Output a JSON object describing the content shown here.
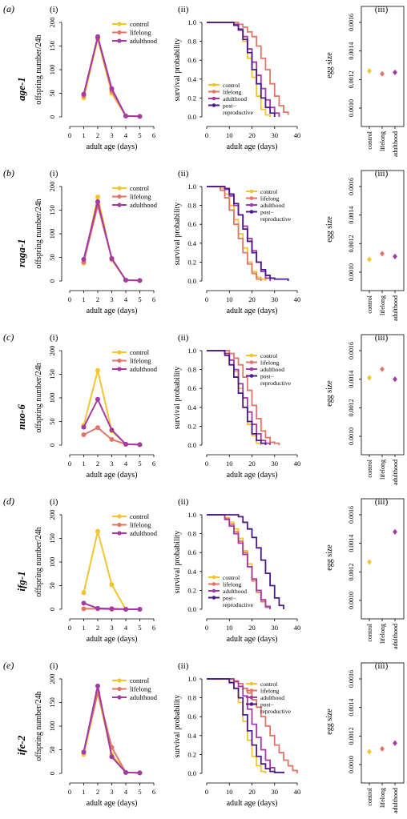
{
  "colors": {
    "control": "#F2C530",
    "lifelong": "#E27567",
    "adulthood": "#A43BA4",
    "post": "#4A1A8C"
  },
  "common": {
    "offspring_xlabel": "adult age (days)",
    "offspring_ylabel": "offspring number/24h",
    "survival_xlabel": "adult age (days)",
    "survival_ylabel": "survival probability",
    "egg_ylabel": "egg size",
    "offspring_xticks": [
      "0",
      "1",
      "2",
      "3",
      "4",
      "5",
      "6"
    ],
    "offspring_yticks": [
      "0",
      "50",
      "100",
      "150",
      "200"
    ],
    "survival_xticks": [
      "0",
      "10",
      "20",
      "30",
      "40"
    ],
    "survival_yticks": [
      "0.0",
      "0.2",
      "0.4",
      "0.6",
      "0.8",
      "1.0"
    ],
    "egg_yticks": [
      "0.0010",
      "0.0012",
      "0.0014",
      "0.0016"
    ],
    "legend_control": "control",
    "legend_lifelong": "lifelong",
    "legend_adulthood": "adulthood",
    "legend_post_1": "post−",
    "legend_post_2": "reproductive",
    "egg_cat_control": "control",
    "egg_cat_lifelong": "lifelong",
    "egg_cat_adulthood": "adulthood"
  },
  "rows": [
    {
      "letter": "(a)",
      "gene": "age-1",
      "sub1": "(i)",
      "sub2": "(ii)",
      "sub3": "(iii)"
    },
    {
      "letter": "(b)",
      "gene": "raga-1",
      "sub1": "(i)",
      "sub2": "(ii)",
      "sub3": "(iii)"
    },
    {
      "letter": "(c)",
      "gene": "nuo-6",
      "sub1": "(i)",
      "sub2": "(ii)",
      "sub3": "(iii)"
    },
    {
      "letter": "(d)",
      "gene": "ifg-1",
      "sub1": "(i)",
      "sub2": "(ii)",
      "sub3": "(iii)"
    },
    {
      "letter": "(e)",
      "gene": "ife-2",
      "sub1": "(i)",
      "sub2": "(ii)",
      "sub3": "(iii)"
    }
  ],
  "chart_data": [
    {
      "panel": "a-i",
      "type": "line",
      "xlabel": "adult age (days)",
      "ylabel": "offspring number/24h",
      "xlim": [
        0,
        6
      ],
      "ylim": [
        0,
        200
      ],
      "x": [
        1,
        2,
        3,
        4,
        5
      ],
      "series": [
        {
          "name": "control",
          "values": [
            40,
            165,
            50,
            2,
            1
          ]
        },
        {
          "name": "lifelong",
          "values": [
            45,
            168,
            55,
            2,
            1
          ]
        },
        {
          "name": "adulthood",
          "values": [
            48,
            170,
            60,
            2,
            1
          ]
        }
      ],
      "legend": "top-right"
    },
    {
      "panel": "a-ii",
      "type": "line",
      "xlabel": "adult age (days)",
      "ylabel": "survival probability",
      "xlim": [
        0,
        40
      ],
      "ylim": [
        0,
        1
      ],
      "series": [
        {
          "name": "control",
          "x": [
            0,
            12,
            14,
            16,
            18,
            20,
            22,
            24,
            26,
            28
          ],
          "values": [
            1,
            0.98,
            0.92,
            0.8,
            0.62,
            0.42,
            0.22,
            0.08,
            0.02,
            0
          ]
        },
        {
          "name": "lifelong",
          "x": [
            0,
            14,
            16,
            18,
            20,
            22,
            24,
            26,
            28,
            30,
            32,
            34,
            36
          ],
          "values": [
            1,
            0.98,
            0.95,
            0.9,
            0.85,
            0.75,
            0.62,
            0.5,
            0.35,
            0.22,
            0.12,
            0.05,
            0.02
          ]
        },
        {
          "name": "adulthood",
          "x": [
            0,
            12,
            14,
            16,
            18,
            20,
            22,
            24,
            26,
            28,
            30,
            32
          ],
          "values": [
            1,
            0.98,
            0.93,
            0.85,
            0.72,
            0.58,
            0.44,
            0.3,
            0.18,
            0.1,
            0.04,
            0
          ]
        },
        {
          "name": "post−reproductive",
          "x": [
            0,
            12,
            14,
            16,
            18,
            20,
            22,
            24,
            26,
            28,
            30
          ],
          "values": [
            1,
            0.97,
            0.92,
            0.82,
            0.68,
            0.5,
            0.35,
            0.2,
            0.1,
            0.04,
            0
          ]
        }
      ],
      "legend": "bottom-left"
    },
    {
      "panel": "a-iii",
      "type": "scatter",
      "ylabel": "egg size",
      "categories": [
        "control",
        "lifelong",
        "adulthood"
      ],
      "values": [
        0.00126,
        0.00124,
        0.00125
      ],
      "ylim": [
        0.001,
        0.0016
      ]
    },
    {
      "panel": "b-i",
      "type": "line",
      "xlabel": "adult age (days)",
      "ylabel": "offspring number/24h",
      "xlim": [
        0,
        6
      ],
      "ylim": [
        0,
        200
      ],
      "x": [
        1,
        2,
        3,
        4,
        5
      ],
      "series": [
        {
          "name": "control",
          "values": [
            38,
            178,
            45,
            2,
            1
          ]
        },
        {
          "name": "lifelong",
          "values": [
            40,
            160,
            48,
            2,
            1
          ]
        },
        {
          "name": "adulthood",
          "values": [
            46,
            168,
            47,
            2,
            1
          ]
        }
      ],
      "legend": "top-right"
    },
    {
      "panel": "b-ii",
      "type": "line",
      "xlabel": "adult age (days)",
      "ylabel": "survival probability",
      "xlim": [
        0,
        40
      ],
      "ylim": [
        0,
        1
      ],
      "series": [
        {
          "name": "control",
          "x": [
            0,
            6,
            8,
            10,
            12,
            14,
            16,
            18,
            20,
            22,
            24,
            26
          ],
          "values": [
            1,
            0.98,
            0.92,
            0.8,
            0.65,
            0.5,
            0.35,
            0.2,
            0.1,
            0.04,
            0.02,
            0
          ]
        },
        {
          "name": "lifelong",
          "x": [
            0,
            6,
            8,
            10,
            12,
            14,
            16,
            18,
            20,
            22,
            24
          ],
          "values": [
            1,
            0.96,
            0.88,
            0.75,
            0.6,
            0.45,
            0.3,
            0.18,
            0.08,
            0.02,
            0
          ]
        },
        {
          "name": "adulthood",
          "x": [
            0,
            8,
            10,
            12,
            14,
            16,
            18,
            20,
            22,
            24,
            26,
            28
          ],
          "values": [
            1,
            0.97,
            0.9,
            0.8,
            0.7,
            0.58,
            0.45,
            0.32,
            0.2,
            0.1,
            0.03,
            0
          ]
        },
        {
          "name": "post−reproductive",
          "x": [
            0,
            8,
            10,
            12,
            14,
            16,
            18,
            20,
            22,
            24,
            26,
            28,
            30,
            36
          ],
          "values": [
            1,
            0.98,
            0.92,
            0.82,
            0.7,
            0.55,
            0.42,
            0.3,
            0.2,
            0.12,
            0.06,
            0.03,
            0.02,
            0
          ]
        }
      ],
      "legend": "top-right"
    },
    {
      "panel": "b-iii",
      "type": "scatter",
      "ylabel": "egg size",
      "categories": [
        "control",
        "lifelong",
        "adulthood"
      ],
      "values": [
        0.00109,
        0.00113,
        0.00111
      ],
      "ylim": [
        0.001,
        0.0016
      ]
    },
    {
      "panel": "c-i",
      "type": "line",
      "xlabel": "adult age (days)",
      "ylabel": "offspring number/24h",
      "xlim": [
        0,
        6
      ],
      "ylim": [
        0,
        200
      ],
      "x": [
        1,
        2,
        3,
        4,
        5
      ],
      "series": [
        {
          "name": "control",
          "values": [
            42,
            158,
            30,
            2,
            1
          ]
        },
        {
          "name": "lifelong",
          "values": [
            22,
            37,
            12,
            2,
            1
          ]
        },
        {
          "name": "adulthood",
          "values": [
            38,
            97,
            32,
            2,
            1
          ]
        }
      ],
      "legend": "top-right"
    },
    {
      "panel": "c-ii",
      "type": "line",
      "xlabel": "adult age (days)",
      "ylabel": "survival probability",
      "xlim": [
        0,
        40
      ],
      "ylim": [
        0,
        1
      ],
      "series": [
        {
          "name": "control",
          "x": [
            0,
            8,
            10,
            12,
            14,
            16,
            18,
            20,
            22,
            24
          ],
          "values": [
            1,
            0.97,
            0.9,
            0.78,
            0.6,
            0.4,
            0.22,
            0.1,
            0.02,
            0
          ]
        },
        {
          "name": "lifelong",
          "x": [
            0,
            10,
            12,
            14,
            16,
            18,
            20,
            22,
            24,
            26,
            28,
            30,
            32
          ],
          "values": [
            1,
            0.97,
            0.92,
            0.85,
            0.72,
            0.58,
            0.42,
            0.28,
            0.15,
            0.08,
            0.03,
            0.02,
            0
          ]
        },
        {
          "name": "adulthood",
          "x": [
            0,
            8,
            10,
            12,
            14,
            16,
            18,
            20,
            22,
            24,
            26,
            28
          ],
          "values": [
            1,
            0.97,
            0.9,
            0.8,
            0.65,
            0.5,
            0.35,
            0.22,
            0.12,
            0.05,
            0.02,
            0
          ]
        },
        {
          "name": "post−reproductive",
          "x": [
            0,
            8,
            10,
            12,
            14,
            16,
            18,
            20,
            22,
            24,
            26
          ],
          "values": [
            1,
            0.95,
            0.85,
            0.72,
            0.55,
            0.4,
            0.25,
            0.12,
            0.05,
            0.02,
            0
          ]
        }
      ],
      "legend": "top-right"
    },
    {
      "panel": "c-iii",
      "type": "scatter",
      "ylabel": "egg size",
      "categories": [
        "control",
        "lifelong",
        "adulthood"
      ],
      "values": [
        0.00141,
        0.00147,
        0.0014
      ],
      "ylim": [
        0.001,
        0.0016
      ]
    },
    {
      "panel": "d-i",
      "type": "line",
      "xlabel": "adult age (days)",
      "ylabel": "offspring number/24h",
      "xlim": [
        0,
        6
      ],
      "ylim": [
        0,
        200
      ],
      "x": [
        1,
        2,
        3,
        4,
        5
      ],
      "series": [
        {
          "name": "control",
          "values": [
            35,
            165,
            52,
            0,
            null
          ]
        },
        {
          "name": "lifelong",
          "values": [
            1,
            1,
            0,
            0,
            0
          ]
        },
        {
          "name": "adulthood",
          "values": [
            13,
            2,
            1,
            0,
            0
          ]
        }
      ],
      "legend": "top-right"
    },
    {
      "panel": "d-ii",
      "type": "line",
      "xlabel": "adult age (days)",
      "ylabel": "survival probability",
      "xlim": [
        0,
        40
      ],
      "ylim": [
        0,
        1
      ],
      "series": [
        {
          "name": "control",
          "x": [
            0,
            8,
            10,
            12,
            14,
            16,
            18,
            20,
            22,
            24,
            26,
            28
          ],
          "values": [
            1,
            0.97,
            0.92,
            0.85,
            0.75,
            0.62,
            0.48,
            0.32,
            0.18,
            0.08,
            0.03,
            0
          ]
        },
        {
          "name": "lifelong",
          "x": [
            0,
            8,
            10,
            12,
            14,
            16,
            18,
            20,
            22,
            24,
            26,
            28
          ],
          "values": [
            1,
            0.96,
            0.9,
            0.82,
            0.72,
            0.6,
            0.45,
            0.3,
            0.18,
            0.08,
            0.02,
            0
          ]
        },
        {
          "name": "adulthood",
          "x": [
            0,
            8,
            10,
            12,
            14,
            16,
            18,
            20,
            22,
            24,
            26,
            28
          ],
          "values": [
            1,
            0.95,
            0.88,
            0.8,
            0.7,
            0.58,
            0.45,
            0.32,
            0.2,
            0.1,
            0.03,
            0
          ]
        },
        {
          "name": "post−reproductive",
          "x": [
            0,
            14,
            16,
            18,
            20,
            22,
            24,
            26,
            28,
            30,
            32,
            34
          ],
          "values": [
            1,
            0.98,
            0.92,
            0.85,
            0.76,
            0.65,
            0.52,
            0.38,
            0.25,
            0.12,
            0.04,
            0
          ]
        }
      ],
      "legend": "bottom-left"
    },
    {
      "panel": "d-iii",
      "type": "scatter",
      "ylabel": "egg size",
      "categories": [
        "control",
        "lifelong",
        "adulthood"
      ],
      "values": [
        0.00127,
        null,
        0.00148
      ],
      "ylim": [
        0.001,
        0.0016
      ]
    },
    {
      "panel": "e-i",
      "type": "line",
      "xlabel": "adult age (days)",
      "ylabel": "offspring number/24h",
      "xlim": [
        0,
        6
      ],
      "ylim": [
        0,
        200
      ],
      "x": [
        1,
        2,
        3,
        4,
        5
      ],
      "series": [
        {
          "name": "control",
          "values": [
            40,
            170,
            40,
            2,
            1
          ]
        },
        {
          "name": "lifelong",
          "values": [
            45,
            172,
            55,
            2,
            1
          ]
        },
        {
          "name": "adulthood",
          "values": [
            45,
            185,
            35,
            2,
            1
          ]
        }
      ],
      "legend": "top-right"
    },
    {
      "panel": "e-ii",
      "type": "line",
      "xlabel": "adult age (days)",
      "ylabel": "survival probability",
      "xlim": [
        0,
        40
      ],
      "ylim": [
        0,
        1
      ],
      "series": [
        {
          "name": "control",
          "x": [
            0,
            10,
            12,
            14,
            16,
            18,
            20,
            22,
            24,
            26
          ],
          "values": [
            1,
            0.97,
            0.9,
            0.75,
            0.55,
            0.35,
            0.18,
            0.08,
            0.02,
            0
          ]
        },
        {
          "name": "lifelong",
          "x": [
            0,
            12,
            14,
            16,
            18,
            20,
            22,
            24,
            26,
            28,
            30,
            32,
            34,
            36,
            38,
            40
          ],
          "values": [
            1,
            0.98,
            0.95,
            0.9,
            0.85,
            0.78,
            0.7,
            0.6,
            0.5,
            0.4,
            0.3,
            0.22,
            0.14,
            0.08,
            0.03,
            0
          ]
        },
        {
          "name": "adulthood",
          "x": [
            0,
            12,
            14,
            16,
            18,
            20,
            22,
            24,
            26,
            28,
            30
          ],
          "values": [
            1,
            0.97,
            0.92,
            0.82,
            0.68,
            0.52,
            0.38,
            0.25,
            0.14,
            0.06,
            0
          ]
        },
        {
          "name": "post−reproductive",
          "x": [
            0,
            10,
            12,
            14,
            16,
            18,
            20,
            22,
            24,
            26,
            28,
            30,
            34
          ],
          "values": [
            1,
            0.96,
            0.9,
            0.8,
            0.62,
            0.45,
            0.3,
            0.18,
            0.1,
            0.05,
            0.02,
            0.01,
            0
          ]
        }
      ],
      "legend": "top-right"
    },
    {
      "panel": "e-iii",
      "type": "scatter",
      "ylabel": "egg size",
      "categories": [
        "control",
        "lifelong",
        "adulthood"
      ],
      "values": [
        0.00109,
        0.00111,
        0.00115
      ],
      "ylim": [
        0.001,
        0.0016
      ]
    }
  ]
}
